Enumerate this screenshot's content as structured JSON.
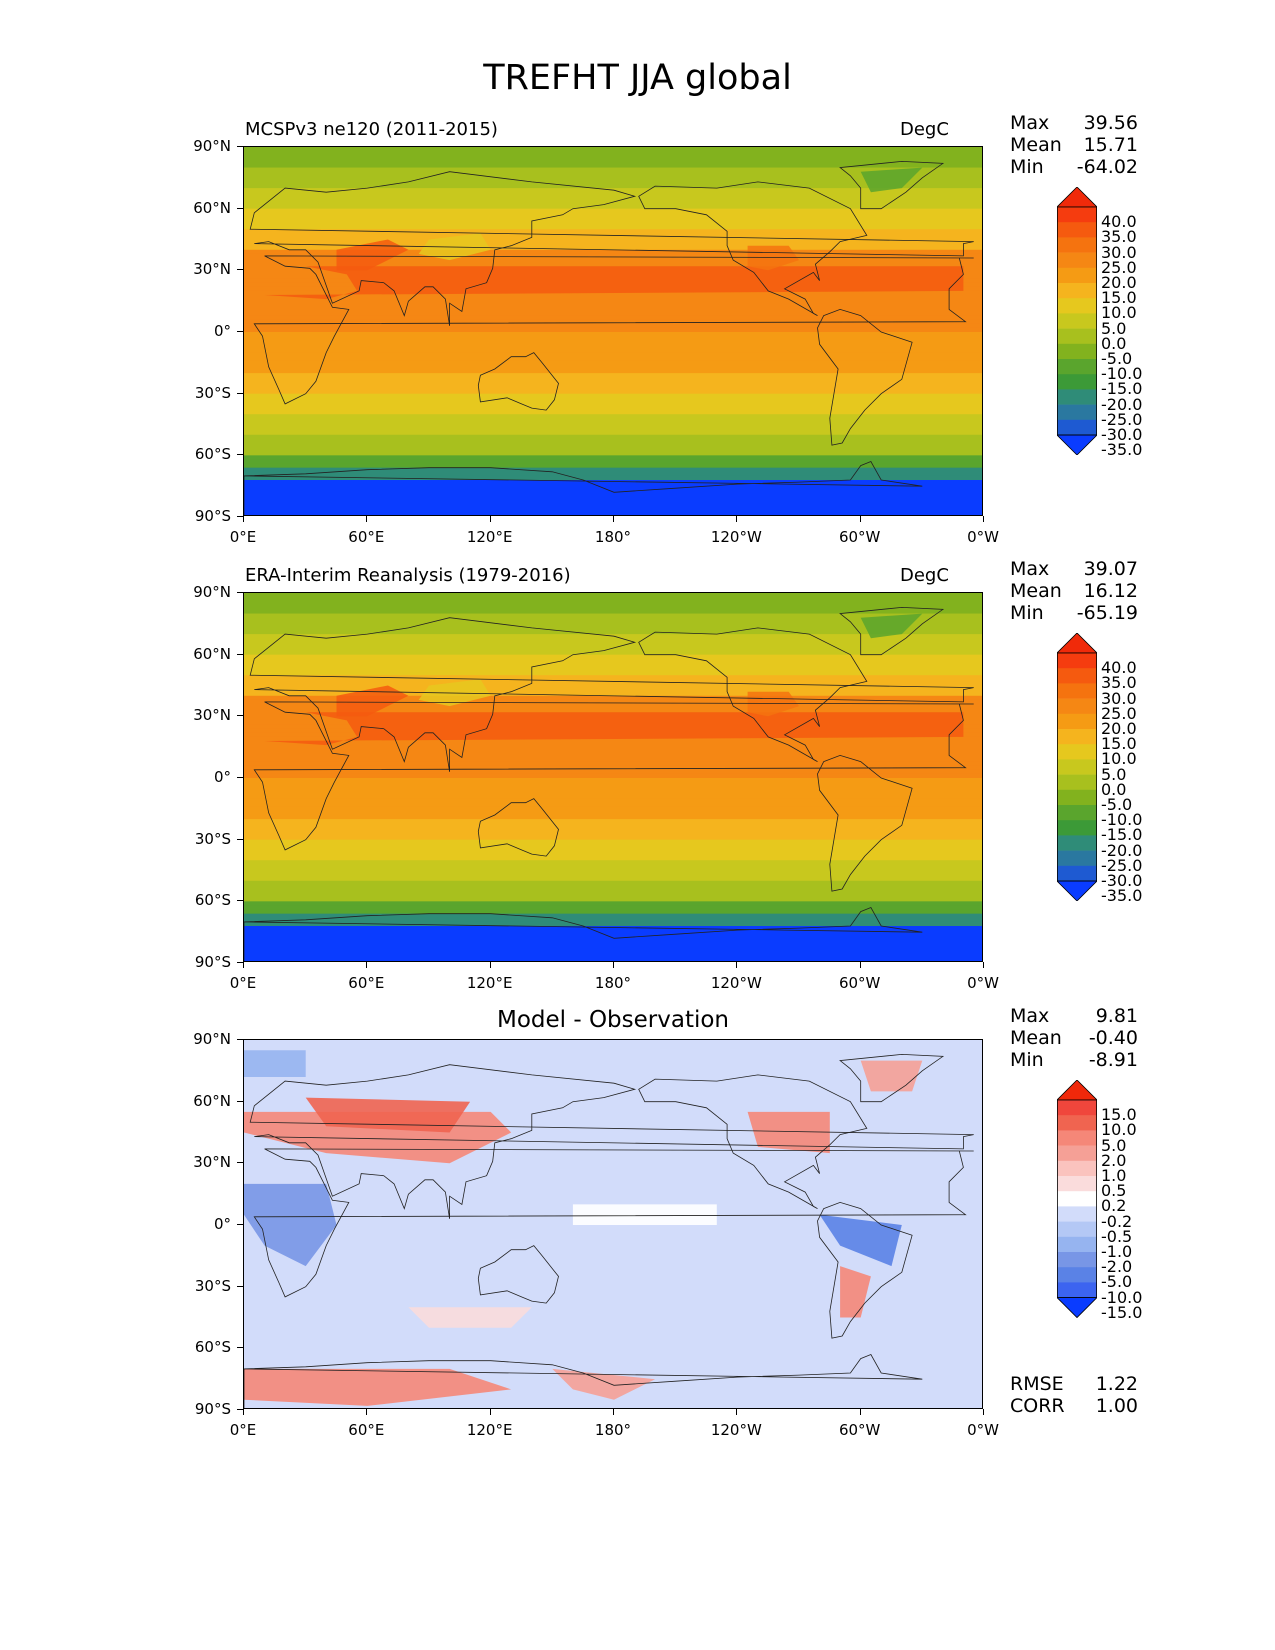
{
  "title": "TREFHT JJA global",
  "lat_labels": [
    "90°N",
    "60°N",
    "30°N",
    "0°",
    "30°S",
    "60°S",
    "90°S"
  ],
  "lon_labels": [
    "0°E",
    "60°E",
    "120°E",
    "180°",
    "120°W",
    "60°W",
    "0°W"
  ],
  "panels": [
    {
      "title": "MCSPv3 ne120 (2011-2015)",
      "units": "DegC",
      "stats": [
        {
          "label": "Max",
          "value": "39.56"
        },
        {
          "label": "Mean",
          "value": "15.71"
        },
        {
          "label": "Min",
          "value": "-64.02"
        }
      ],
      "colorbar": [
        "40.0",
        "35.0",
        "30.0",
        "25.0",
        "20.0",
        "15.0",
        "10.0",
        "5.0",
        "0.0",
        "-5.0",
        "-10.0",
        "-15.0",
        "-20.0",
        "-25.0",
        "-30.0",
        "-35.0"
      ]
    },
    {
      "title": "ERA-Interim Reanalysis (1979-2016)",
      "units": "DegC",
      "stats": [
        {
          "label": "Max",
          "value": "39.07"
        },
        {
          "label": "Mean",
          "value": "16.12"
        },
        {
          "label": "Min",
          "value": "-65.19"
        }
      ],
      "colorbar": [
        "40.0",
        "35.0",
        "30.0",
        "25.0",
        "20.0",
        "15.0",
        "10.0",
        "5.0",
        "0.0",
        "-5.0",
        "-10.0",
        "-15.0",
        "-20.0",
        "-25.0",
        "-30.0",
        "-35.0"
      ]
    },
    {
      "title": "Model - Observation",
      "units": "",
      "stats": [
        {
          "label": "Max",
          "value": "9.81"
        },
        {
          "label": "Mean",
          "value": "-0.40"
        },
        {
          "label": "Min",
          "value": "-8.91"
        }
      ],
      "colorbar": [
        "15.0",
        "10.0",
        "5.0",
        "2.0",
        "1.0",
        "0.5",
        "0.2",
        "-0.2",
        "-0.5",
        "-1.0",
        "-2.0",
        "-5.0",
        "-10.0",
        "-15.0"
      ],
      "metrics": [
        {
          "label": "RMSE",
          "value": "1.22"
        },
        {
          "label": "CORR",
          "value": "1.00"
        }
      ]
    }
  ],
  "colors": {
    "temp_scale": [
      "#0a3cff",
      "#1e5ad2",
      "#2a78a0",
      "#2f8c78",
      "#3c9a37",
      "#5aa52d",
      "#82b21e",
      "#a8c01e",
      "#c8c81e",
      "#e6c81e",
      "#f5b41e",
      "#f59b14",
      "#f58714",
      "#f5730f",
      "#f55a0f",
      "#f53c0f",
      "#f02a0a"
    ],
    "diff_scale": [
      "#0a3cff",
      "#3c64f0",
      "#5a82e6",
      "#7896e6",
      "#96b4f0",
      "#b4c8f5",
      "#d2dcfa",
      "#ffffff",
      "#fadcdc",
      "#fac3be",
      "#f5a096",
      "#f58778",
      "#f06450",
      "#f0463c",
      "#f0280a"
    ]
  }
}
